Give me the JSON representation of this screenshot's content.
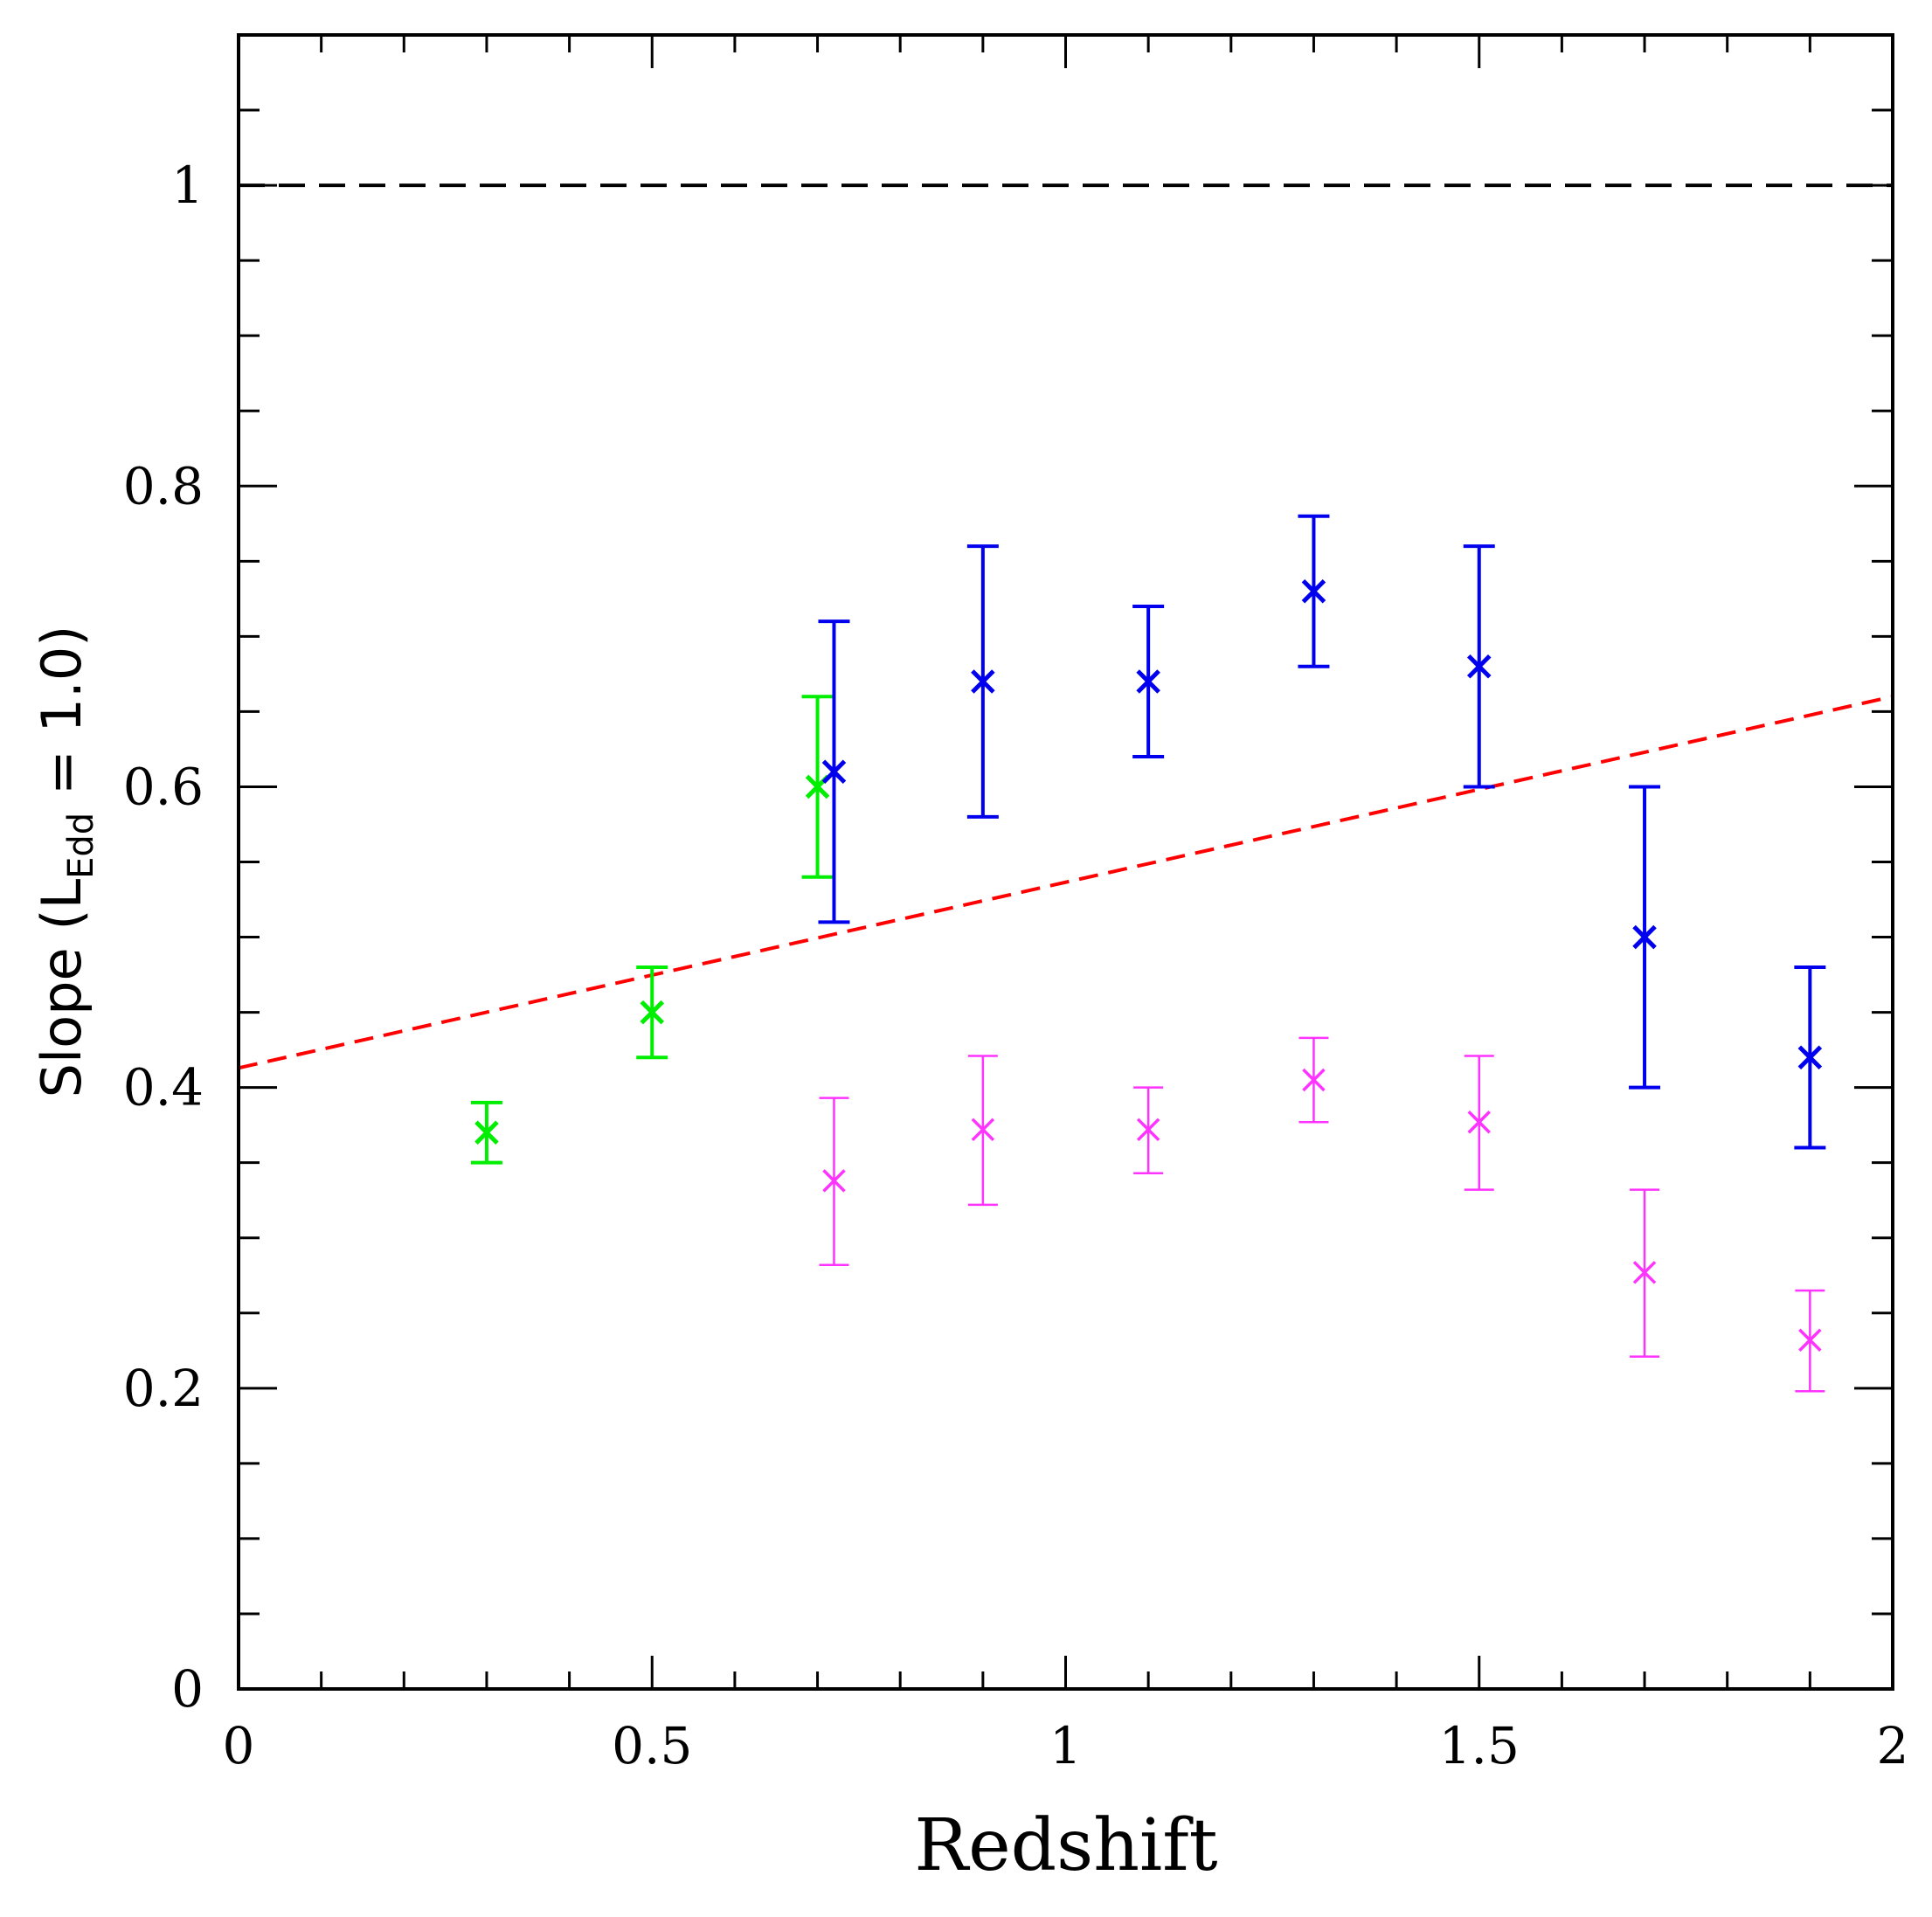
{
  "chart_data": {
    "type": "scatter",
    "title": "",
    "xlabel": "Redshift",
    "ylabel": {
      "prefix": "Slope  (L",
      "subscript": "Edd",
      "suffix": " =  1.0)"
    },
    "xlim": [
      0,
      2
    ],
    "ylim": [
      0,
      1.1
    ],
    "x_major_ticks": [
      0,
      0.5,
      1,
      1.5,
      2
    ],
    "x_tick_labels": [
      "0",
      "0.5",
      "1",
      "1.5",
      "2"
    ],
    "x_minor_step": 0.1,
    "y_major_ticks": [
      0,
      0.2,
      0.4,
      0.6,
      0.8,
      1
    ],
    "y_tick_labels": [
      "0",
      "0.2",
      "0.4",
      "0.6",
      "0.8",
      "1"
    ],
    "y_minor_step": 0.05,
    "grid": false,
    "reference_lines": [
      {
        "name": "unity",
        "y": 1.0,
        "color": "#000000",
        "style": "dashed"
      }
    ],
    "fit_lines": [
      {
        "name": "linear-fit",
        "x": [
          0,
          2
        ],
        "y": [
          0.413,
          0.66
        ],
        "color": "#ff0000",
        "style": "dashed"
      }
    ],
    "series": [
      {
        "name": "green",
        "color": "#00ee00",
        "points": [
          {
            "x": 0.3,
            "y": 0.37,
            "lo": 0.35,
            "hi": 0.39
          },
          {
            "x": 0.5,
            "y": 0.45,
            "lo": 0.42,
            "hi": 0.48
          },
          {
            "x": 0.7,
            "y": 0.6,
            "lo": 0.54,
            "hi": 0.66
          }
        ]
      },
      {
        "name": "blue",
        "color": "#0000ee",
        "points": [
          {
            "x": 0.72,
            "y": 0.61,
            "lo": 0.51,
            "hi": 0.71
          },
          {
            "x": 0.9,
            "y": 0.67,
            "lo": 0.58,
            "hi": 0.76
          },
          {
            "x": 1.1,
            "y": 0.67,
            "lo": 0.62,
            "hi": 0.72
          },
          {
            "x": 1.3,
            "y": 0.73,
            "lo": 0.68,
            "hi": 0.78
          },
          {
            "x": 1.5,
            "y": 0.68,
            "lo": 0.6,
            "hi": 0.76
          },
          {
            "x": 1.7,
            "y": 0.5,
            "lo": 0.4,
            "hi": 0.6
          },
          {
            "x": 1.9,
            "y": 0.42,
            "lo": 0.36,
            "hi": 0.48
          }
        ]
      },
      {
        "name": "magenta",
        "color": "#ff33ff",
        "points": [
          {
            "x": 0.72,
            "y": 0.338,
            "lo": 0.282,
            "hi": 0.393
          },
          {
            "x": 0.9,
            "y": 0.372,
            "lo": 0.322,
            "hi": 0.421
          },
          {
            "x": 1.1,
            "y": 0.372,
            "lo": 0.343,
            "hi": 0.4
          },
          {
            "x": 1.3,
            "y": 0.405,
            "lo": 0.377,
            "hi": 0.433
          },
          {
            "x": 1.5,
            "y": 0.377,
            "lo": 0.332,
            "hi": 0.421
          },
          {
            "x": 1.7,
            "y": 0.277,
            "lo": 0.221,
            "hi": 0.332
          },
          {
            "x": 1.9,
            "y": 0.232,
            "lo": 0.198,
            "hi": 0.265
          }
        ]
      }
    ]
  }
}
